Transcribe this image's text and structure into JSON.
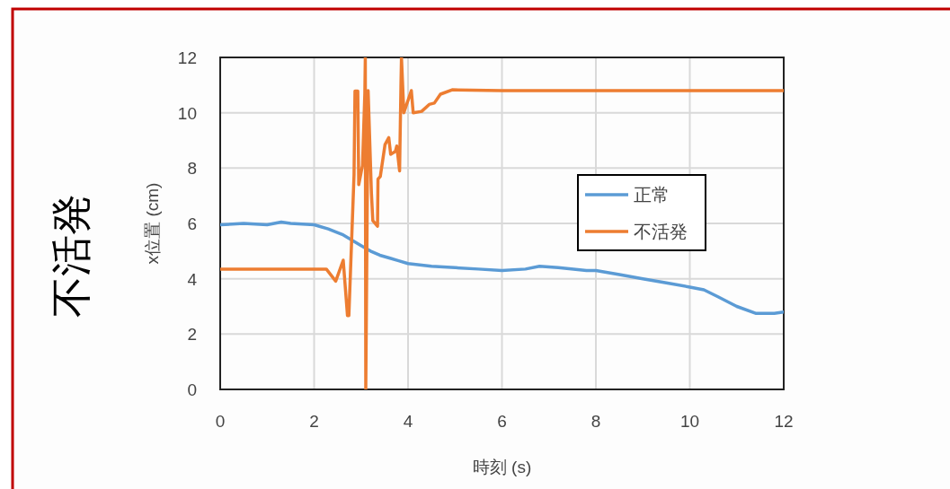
{
  "chart_data": {
    "type": "line",
    "title": "不活発",
    "xlabel": "時刻 (s)",
    "ylabel": "x位置 (cm)",
    "xlim": [
      0,
      12
    ],
    "xticks": [
      0,
      2,
      4,
      6,
      8,
      10,
      12
    ],
    "ylim": [
      0,
      12
    ],
    "yticks": [
      0,
      2,
      4,
      6,
      8,
      10,
      12
    ],
    "grid": true,
    "legend": "right",
    "series": [
      {
        "name": "正常",
        "color": "#5b9bd5",
        "x": [
          0,
          0.5,
          1.0,
          1.3,
          1.5,
          2.0,
          2.3,
          2.6,
          2.8,
          3.0,
          3.2,
          3.4,
          3.6,
          3.8,
          4.0,
          4.5,
          5.0,
          5.5,
          6.0,
          6.5,
          6.8,
          7.2,
          7.8,
          8.0,
          8.5,
          9.0,
          9.5,
          10.0,
          10.3,
          10.6,
          11.0,
          11.4,
          11.8,
          12.0
        ],
        "values": [
          5.95,
          6.0,
          5.95,
          6.05,
          6.0,
          5.95,
          5.8,
          5.6,
          5.4,
          5.2,
          5.0,
          4.85,
          4.75,
          4.65,
          4.55,
          4.45,
          4.4,
          4.35,
          4.3,
          4.35,
          4.45,
          4.4,
          4.3,
          4.3,
          4.15,
          4.0,
          3.85,
          3.7,
          3.6,
          3.35,
          3.0,
          2.75,
          2.75,
          2.8
        ]
      },
      {
        "name": "不活発",
        "color": "#ed7d31",
        "x": [
          0,
          2.26,
          2.46,
          2.62,
          2.71,
          2.74,
          2.85,
          2.87,
          2.93,
          2.95,
          3.03,
          3.08,
          3.09,
          3.1,
          3.15,
          3.22,
          3.25,
          3.35,
          3.36,
          3.41,
          3.51,
          3.59,
          3.63,
          3.73,
          3.76,
          3.82,
          3.85,
          3.86,
          3.91,
          4.07,
          4.11,
          4.29,
          4.45,
          4.56,
          4.69,
          4.94,
          6.0,
          8.0,
          10.0,
          12.0
        ],
        "values": [
          4.35,
          4.35,
          3.91,
          4.67,
          2.67,
          2.67,
          7.75,
          10.78,
          10.78,
          7.4,
          8.1,
          10.7,
          12,
          0,
          10.8,
          7.1,
          6.1,
          5.9,
          7.6,
          7.7,
          8.85,
          9.1,
          8.5,
          8.6,
          8.8,
          7.9,
          11.1,
          12,
          10.0,
          10.8,
          10.0,
          10.05,
          10.3,
          10.35,
          10.67,
          10.83,
          10.8,
          10.8,
          10.8,
          10.8
        ]
      }
    ]
  }
}
